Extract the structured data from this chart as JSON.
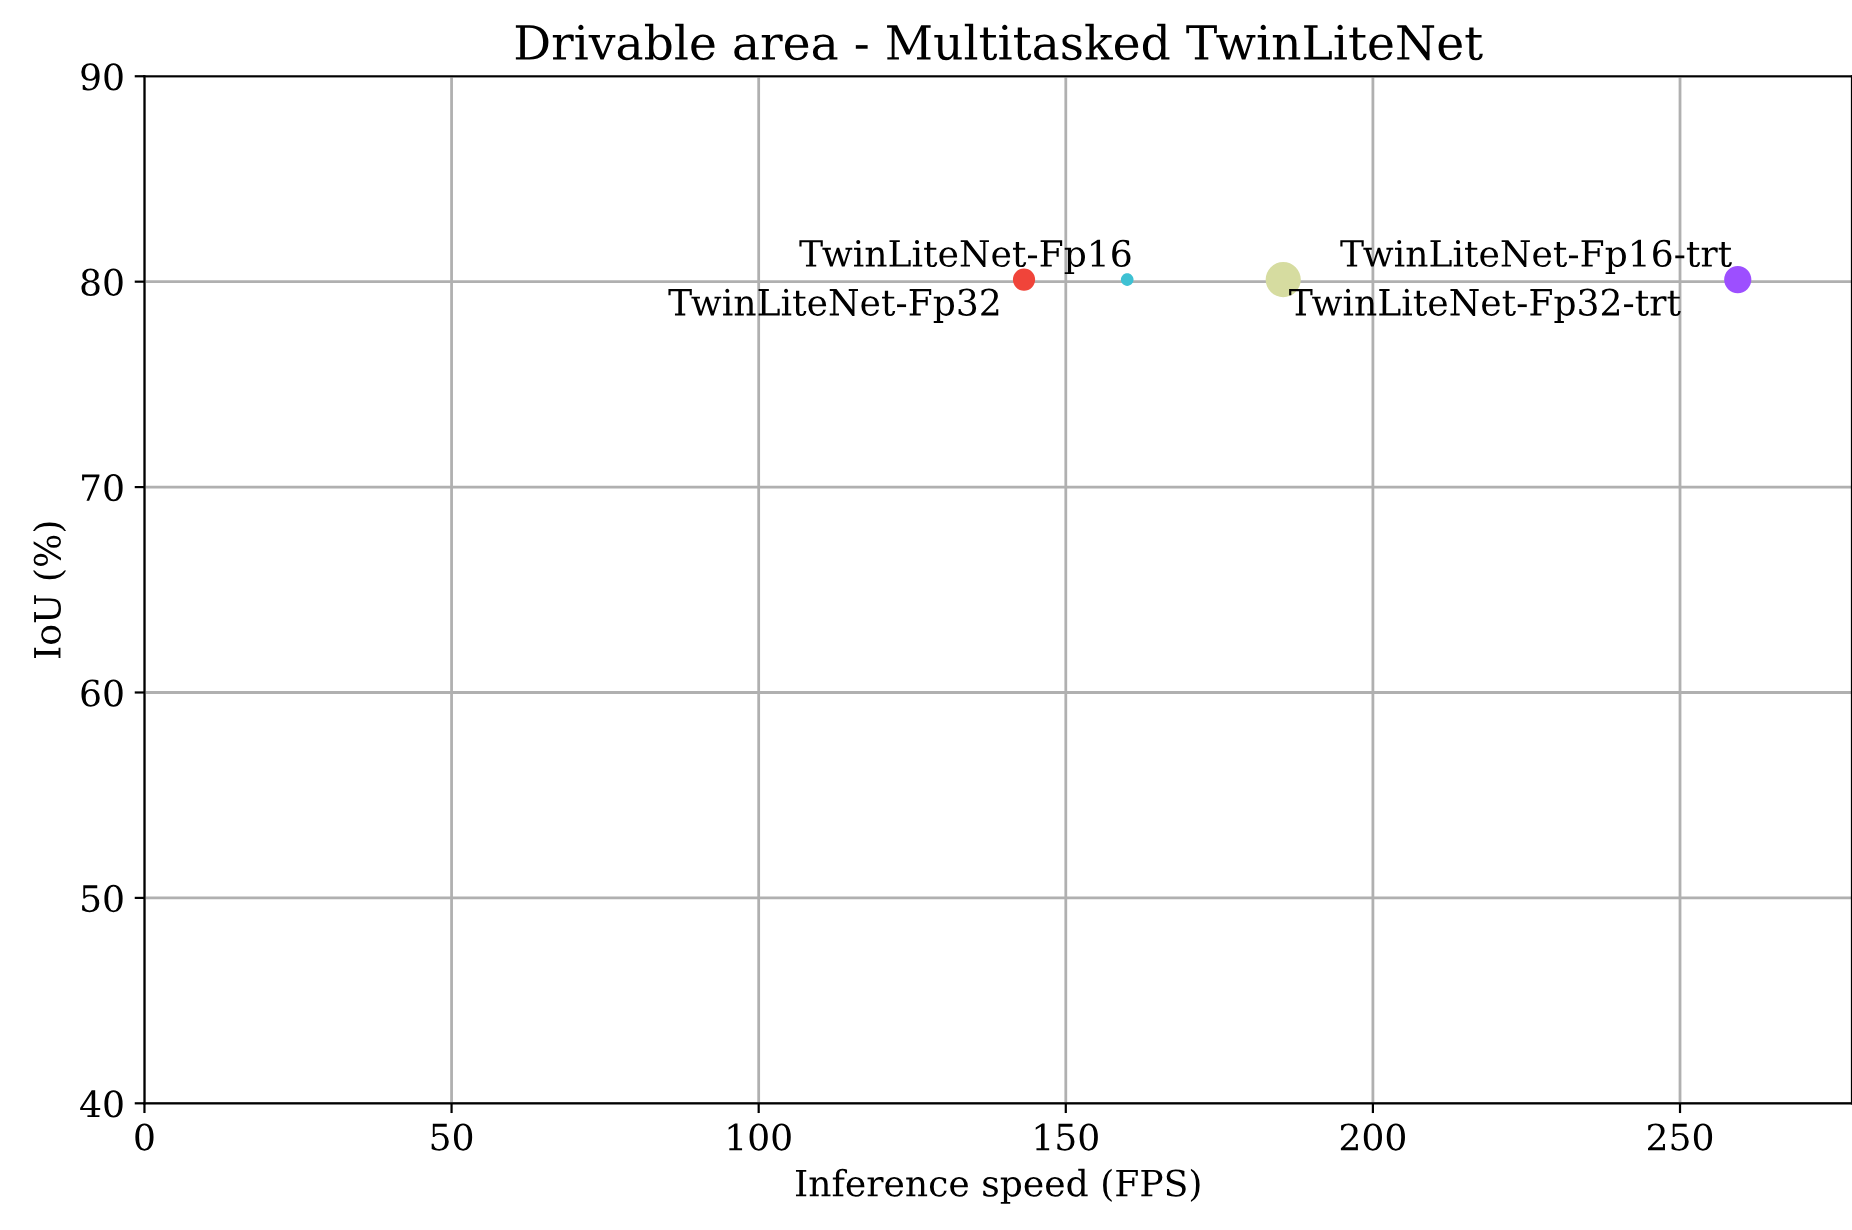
{
  "chart_data": {
    "type": "bubble",
    "title": "Drivable area - Multitasked TwinLiteNet",
    "xlabel": "Inference speed (FPS)",
    "ylabel": "IoU (%)",
    "x": [
      143.2,
      160,
      185.4,
      259.4
    ],
    "values": [
      80.1,
      80.1,
      80.1,
      80.1
    ],
    "sizes": [
      0.4,
      0.13,
      1,
      0.6
    ],
    "colors": [
      "#f0443a",
      "#3ec1d3",
      "#d6dca0",
      "#9d4fff"
    ],
    "annotations": [
      {
        "text": "TwinLiteNet-Fp32",
        "x": 143.2,
        "y": 80.1
      },
      {
        "text": "TwinLiteNet-Fp16",
        "x": 160,
        "y": 80.1
      },
      {
        "text": "TwinLiteNet-Fp32-trt",
        "x": 185.4,
        "y": 80.1
      },
      {
        "text": "TwinLiteNet-Fp16-trt",
        "x": 259.4,
        "y": 80.1
      }
    ],
    "xlim": [
      0,
      278
    ],
    "xticks": [
      0,
      50,
      100,
      150,
      200,
      250
    ],
    "ylim": [
      40,
      90
    ],
    "yticks": [
      40,
      50,
      60,
      70,
      80,
      90
    ],
    "grid": true
  }
}
